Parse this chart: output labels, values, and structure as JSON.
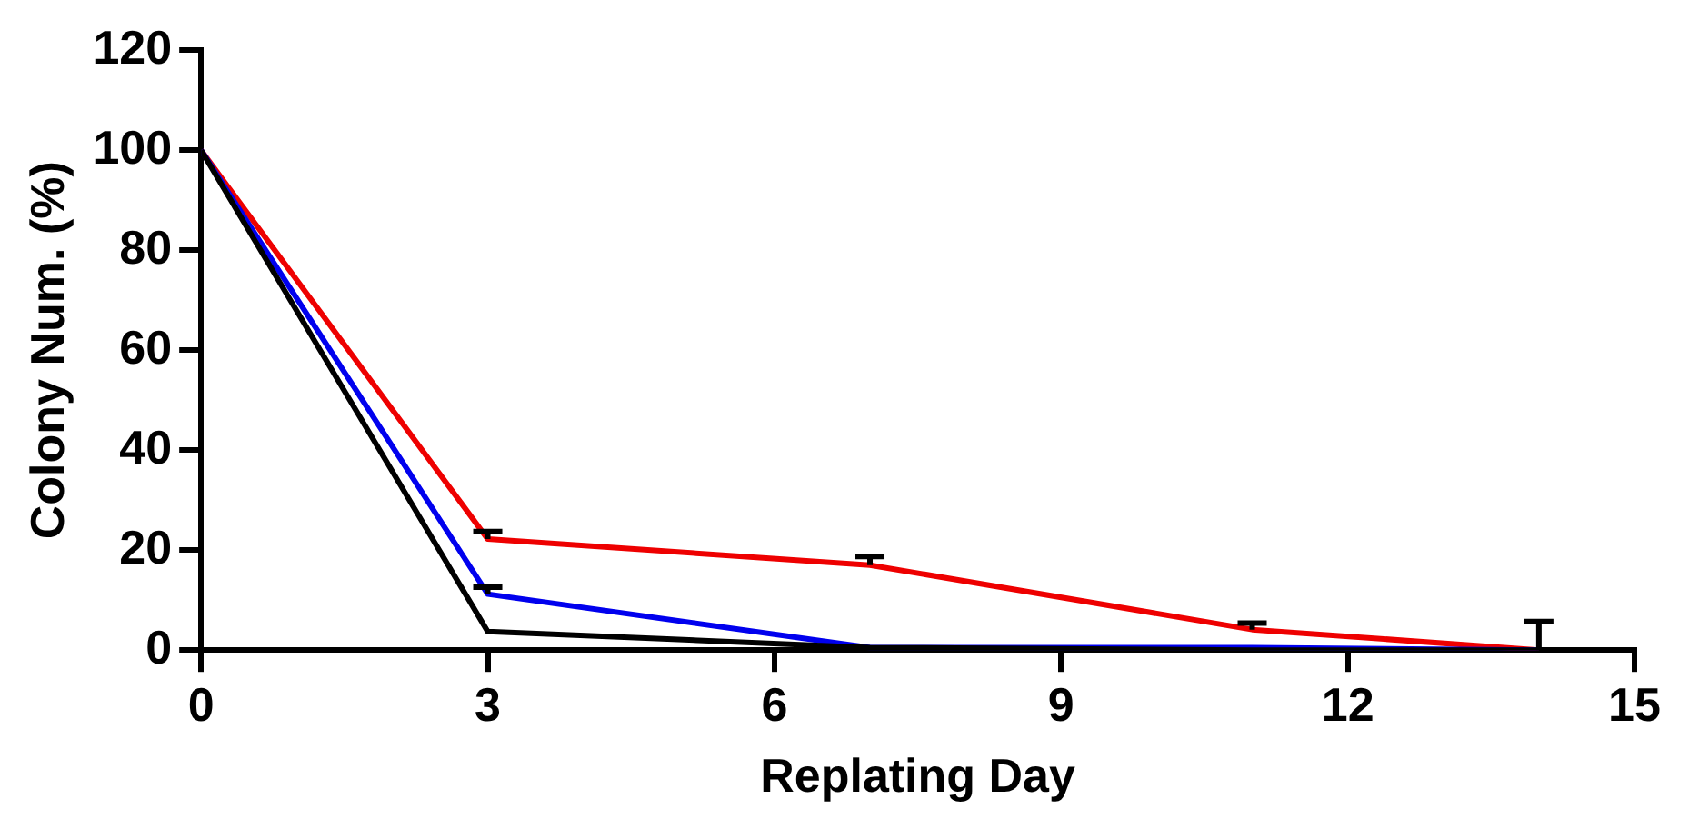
{
  "chart_data": {
    "type": "line",
    "xlabel": "Replating Day",
    "ylabel": "Colony Num. (%)",
    "x": [
      0,
      3,
      7,
      11,
      14
    ],
    "series": [
      {
        "color": "#000000",
        "values": [
          100,
          3.7,
          0.5,
          0,
          0
        ]
      },
      {
        "color": "#0000ee",
        "values": [
          100,
          11.2,
          0.5,
          0.5,
          0
        ],
        "errors": [
          null,
          [
            11.2,
            12.6
          ],
          null,
          null,
          null
        ]
      },
      {
        "color": "#ee0000",
        "values": [
          100,
          22.2,
          17,
          4.1,
          0
        ],
        "errors": [
          null,
          [
            22.2,
            23.7
          ],
          [
            17,
            18.7
          ],
          [
            4.1,
            5.4
          ],
          [
            0,
            5.7
          ]
        ]
      }
    ],
    "xlim": [
      0,
      15
    ],
    "xticks": [
      0,
      3,
      6,
      9,
      12,
      15
    ],
    "ylim": [
      0,
      120
    ],
    "yticks": [
      0,
      20,
      40,
      60,
      80,
      100,
      120
    ],
    "grid": false,
    "legend": false,
    "marker": "none",
    "line_style": "solid"
  }
}
